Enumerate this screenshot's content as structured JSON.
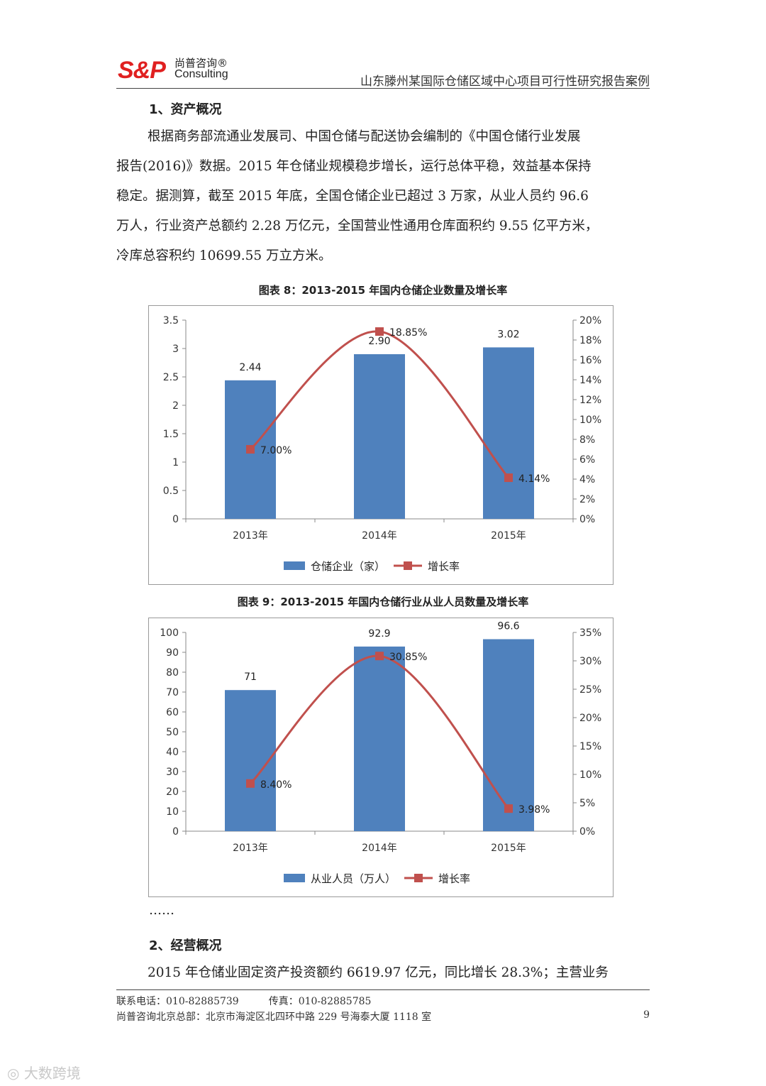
{
  "header": {
    "logo_mark": "S&P",
    "logo_cn": "尚普咨询®",
    "logo_en": "Consulting",
    "title": "山东滕州某国际仓储区域中心项目可行性研究报告案例"
  },
  "section1": {
    "heading": "1、资产概况",
    "lines": [
      "根据商务部流通业发展司、中国仓储与配送协会编制的《中国仓储行业发展",
      "报告(2016)》数据。2015 年仓储业规模稳步增长，运行总体平稳，效益基本保持",
      "稳定。据测算，截至 2015 年底，全国仓储企业已超过 3 万家，从业人员约 96.6",
      "万人，行业资产总额约 2.28 万亿元，全国营业性通用仓库面积约 9.55 亿平方米，",
      "冷库总容积约 10699.55 万立方米。"
    ]
  },
  "chart_data": [
    {
      "type": "bar",
      "caption": "图表 8：2013-2015 年国内仓储企业数量及增长率",
      "categories": [
        "2013年",
        "2014年",
        "2015年"
      ],
      "y_ticks": [
        "0",
        "0.5",
        "1",
        "1.5",
        "2",
        "2.5",
        "3",
        "3.5"
      ],
      "y2_ticks": [
        "0%",
        "2%",
        "4%",
        "6%",
        "8%",
        "10%",
        "12%",
        "14%",
        "16%",
        "18%",
        "20%"
      ],
      "ylim": [
        0,
        3.5
      ],
      "y2lim": [
        0,
        20
      ],
      "series": [
        {
          "name": "仓储企业（家）",
          "kind": "bar",
          "axis": "left",
          "values": [
            2.44,
            2.9,
            3.02
          ],
          "labels": [
            "2.44",
            "2.90",
            "3.02"
          ],
          "color": "#4f81bd"
        },
        {
          "name": "增长率",
          "kind": "line",
          "axis": "right",
          "values": [
            7.0,
            18.85,
            4.14
          ],
          "labels": [
            "7.00%",
            "18.85%",
            "4.14%"
          ],
          "color": "#c0504d"
        }
      ],
      "legend": "bottom",
      "grid": false
    },
    {
      "type": "bar",
      "caption": "图表 9：2013-2015 年国内仓储行业从业人员数量及增长率",
      "categories": [
        "2013年",
        "2014年",
        "2015年"
      ],
      "y_ticks": [
        "0",
        "10",
        "20",
        "30",
        "40",
        "50",
        "60",
        "70",
        "80",
        "90",
        "100"
      ],
      "y2_ticks": [
        "0%",
        "5%",
        "10%",
        "15%",
        "20%",
        "25%",
        "30%",
        "35%"
      ],
      "ylim": [
        0,
        100
      ],
      "y2lim": [
        0,
        35
      ],
      "series": [
        {
          "name": "从业人员（万人）",
          "kind": "bar",
          "axis": "left",
          "values": [
            71,
            92.9,
            96.6
          ],
          "labels": [
            "71",
            "92.9",
            "96.6"
          ],
          "color": "#4f81bd"
        },
        {
          "name": "增长率",
          "kind": "line",
          "axis": "right",
          "values": [
            8.4,
            30.85,
            3.98
          ],
          "labels": [
            "8.40%",
            "30.85%",
            "3.98%"
          ],
          "color": "#c0504d"
        }
      ],
      "legend": "bottom",
      "grid": false
    }
  ],
  "ellipsis": "……",
  "section2": {
    "heading": "2、经营概况",
    "line": "2015 年仓储业固定资产投资额约 6619.97 亿元，同比增长 28.3%；主营业务"
  },
  "footer": {
    "phone": "联系电话：010-82885739　　　传真：010-82885785",
    "address": "尚普咨询北京总部：北京市海淀区北四环中路 229 号海泰大厦 1118 室",
    "page": "9"
  },
  "watermark": "大数跨境"
}
